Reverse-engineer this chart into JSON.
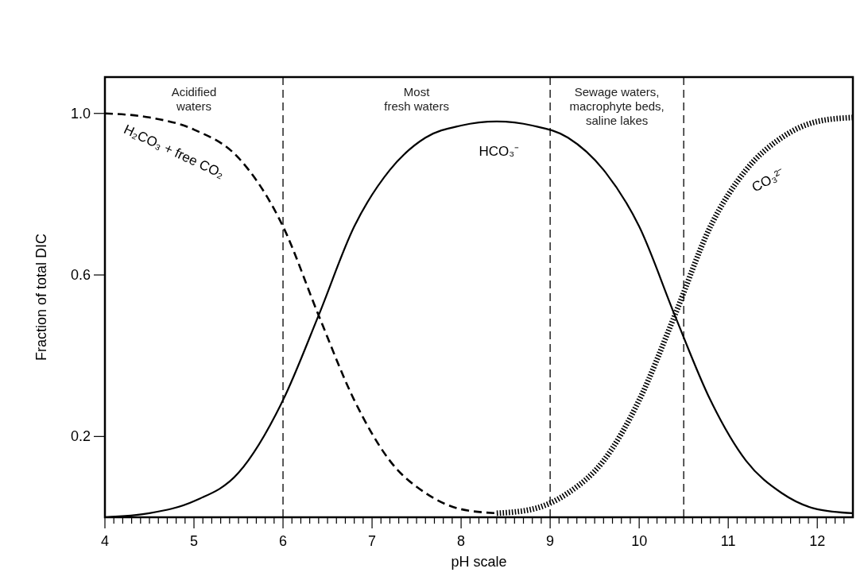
{
  "chart_data": {
    "type": "line",
    "xlabel": "pH scale",
    "ylabel": "Fraction of total DIC",
    "xlim": [
      4,
      12.4
    ],
    "ylim": [
      0,
      1.09
    ],
    "xticks": [
      4,
      {
        "value": 4.1,
        "label": null
      },
      {
        "value": 4.2,
        "label": null
      },
      {
        "value": 4.3,
        "label": null
      },
      {
        "value": 4.4,
        "label": null
      },
      {
        "value": 4.5,
        "label": null
      },
      {
        "value": 4.6,
        "label": null
      },
      {
        "value": 4.7,
        "label": null
      },
      {
        "value": 4.8,
        "label": null
      },
      {
        "value": 4.9,
        "label": null
      },
      5,
      {
        "value": 5.1,
        "label": null
      },
      {
        "value": 5.2,
        "label": null
      },
      {
        "value": 5.3,
        "label": null
      },
      {
        "value": 5.4,
        "label": null
      },
      {
        "value": 5.5,
        "label": null
      },
      {
        "value": 5.6,
        "label": null
      },
      {
        "value": 5.7,
        "label": null
      },
      {
        "value": 5.8,
        "label": null
      },
      {
        "value": 5.9,
        "label": null
      },
      6,
      {
        "value": 6.1,
        "label": null
      },
      {
        "value": 6.2,
        "label": null
      },
      {
        "value": 6.3,
        "label": null
      },
      {
        "value": 6.4,
        "label": null
      },
      {
        "value": 6.5,
        "label": null
      },
      {
        "value": 6.6,
        "label": null
      },
      {
        "value": 6.7,
        "label": null
      },
      {
        "value": 6.8,
        "label": null
      },
      {
        "value": 6.9,
        "label": null
      },
      7,
      {
        "value": 7.1,
        "label": null
      },
      {
        "value": 7.2,
        "label": null
      },
      {
        "value": 7.3,
        "label": null
      },
      {
        "value": 7.4,
        "label": null
      },
      {
        "value": 7.5,
        "label": null
      },
      {
        "value": 7.6,
        "label": null
      },
      {
        "value": 7.7,
        "label": null
      },
      {
        "value": 7.8,
        "label": null
      },
      {
        "value": 7.9,
        "label": null
      },
      8,
      {
        "value": 8.1,
        "label": null
      },
      {
        "value": 8.2,
        "label": null
      },
      {
        "value": 8.3,
        "label": null
      },
      {
        "value": 8.4,
        "label": null
      },
      {
        "value": 8.5,
        "label": null
      },
      {
        "value": 8.6,
        "label": null
      },
      {
        "value": 8.7,
        "label": null
      },
      {
        "value": 8.8,
        "label": null
      },
      {
        "value": 8.9,
        "label": null
      },
      9,
      {
        "value": 9.1,
        "label": null
      },
      {
        "value": 9.2,
        "label": null
      },
      {
        "value": 9.3,
        "label": null
      },
      {
        "value": 9.4,
        "label": null
      },
      {
        "value": 9.5,
        "label": null
      },
      {
        "value": 9.6,
        "label": null
      },
      {
        "value": 9.7,
        "label": null
      },
      {
        "value": 9.8,
        "label": null
      },
      {
        "value": 9.9,
        "label": null
      },
      10,
      {
        "value": 10.1,
        "label": null
      },
      {
        "value": 10.2,
        "label": null
      },
      {
        "value": 10.3,
        "label": null
      },
      {
        "value": 10.4,
        "label": null
      },
      {
        "value": 10.5,
        "label": null
      },
      {
        "value": 10.6,
        "label": null
      },
      {
        "value": 10.7,
        "label": null
      },
      {
        "value": 10.8,
        "label": null
      },
      {
        "value": 10.9,
        "label": null
      },
      11,
      {
        "value": 11.1,
        "label": null
      },
      {
        "value": 11.2,
        "label": null
      },
      {
        "value": 11.3,
        "label": null
      },
      {
        "value": 11.4,
        "label": null
      },
      {
        "value": 11.5,
        "label": null
      },
      {
        "value": 11.6,
        "label": null
      },
      {
        "value": 11.7,
        "label": null
      },
      {
        "value": 11.8,
        "label": null
      },
      {
        "value": 11.9,
        "label": null
      },
      12,
      {
        "value": 12.1,
        "label": null
      },
      {
        "value": 12.2,
        "label": null
      },
      {
        "value": 12.3,
        "label": null
      }
    ],
    "yticks": [
      0.2,
      0.6,
      {
        "value": 1,
        "label": "1.0"
      }
    ],
    "series": [
      {
        "name": "H₂CO₃ + free CO₂",
        "color": "#000000",
        "line_style": "dashed",
        "x": [
          4,
          4.5,
          5,
          5.5,
          6,
          6.4,
          6.8,
          7.2,
          7.6,
          8,
          8.4
        ],
        "values": [
          1.0,
          0.99,
          0.96,
          0.89,
          0.72,
          0.5,
          0.29,
          0.14,
          0.06,
          0.02,
          0.01
        ]
      },
      {
        "name": "HCO₃⁻",
        "color": "#000000",
        "line_style": "solid",
        "x": [
          4,
          4.5,
          5,
          5.5,
          6,
          6.4,
          6.8,
          7.2,
          7.6,
          8,
          8.4,
          8.8,
          9.2,
          9.6,
          10,
          10.4,
          10.8,
          11.2,
          11.6,
          12,
          12.4
        ],
        "values": [
          0.0,
          0.01,
          0.04,
          0.11,
          0.29,
          0.5,
          0.72,
          0.86,
          0.94,
          0.97,
          0.98,
          0.97,
          0.94,
          0.86,
          0.72,
          0.5,
          0.29,
          0.14,
          0.06,
          0.02,
          0.01
        ]
      },
      {
        "name": "CO₃²⁻",
        "color": "#000000",
        "line_style": "dotted",
        "x": [
          8.4,
          8.8,
          9.2,
          9.6,
          10,
          10.4,
          10.8,
          11.2,
          11.6,
          12,
          12.4
        ],
        "values": [
          0.01,
          0.02,
          0.06,
          0.14,
          0.29,
          0.5,
          0.72,
          0.86,
          0.94,
          0.98,
          0.99
        ]
      }
    ],
    "ref_lines": [
      {
        "axis": "x",
        "value": 6,
        "line_style": "dashed"
      },
      {
        "axis": "x",
        "value": 9,
        "line_style": "dashed"
      },
      {
        "axis": "x",
        "value": 10.5,
        "line_style": "dashed"
      }
    ],
    "annotations": [
      "Acidified\nwaters",
      "Most\nfresh waters",
      "Sewage waters,\nmacrophyte beds,\nsaline lakes"
    ]
  }
}
